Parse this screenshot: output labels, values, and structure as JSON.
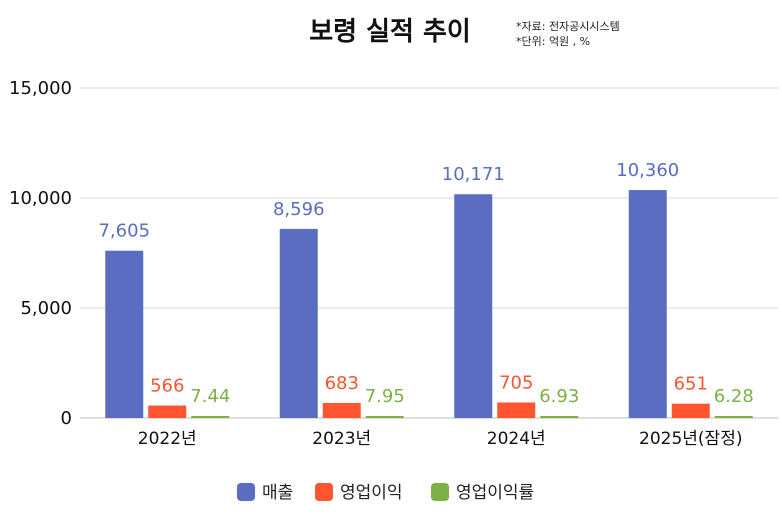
{
  "chart_data": {
    "type": "bar",
    "title": "보령 실적 추이",
    "notes": [
      "*자료: 전자공시시스템",
      "*단위: 억원 , %"
    ],
    "categories": [
      "2022년",
      "2023년",
      "2024년",
      "2025년(잠정)"
    ],
    "series": [
      {
        "name": "매출",
        "color": "#5B6DC0",
        "values": [
          7605,
          8596,
          10171,
          10360
        ],
        "labels": [
          "7,605",
          "8,596",
          "10,171",
          "10,360"
        ]
      },
      {
        "name": "영업이익",
        "color": "#FF5530",
        "values": [
          566,
          683,
          705,
          651
        ],
        "labels": [
          "566",
          "683",
          "705",
          "651"
        ]
      },
      {
        "name": "영업이익률",
        "color": "#7DB044",
        "values": [
          7.44,
          7.95,
          6.93,
          6.28
        ],
        "labels": [
          "7.44",
          "7.95",
          "6.93",
          "6.28"
        ]
      }
    ],
    "yticks": [
      0,
      5000,
      10000,
      15000
    ],
    "ytick_labels": [
      "0",
      "5,000",
      "10,000",
      "15,000"
    ],
    "ylim": [
      0,
      15000
    ],
    "grid": true,
    "legend_position": "bottom"
  }
}
